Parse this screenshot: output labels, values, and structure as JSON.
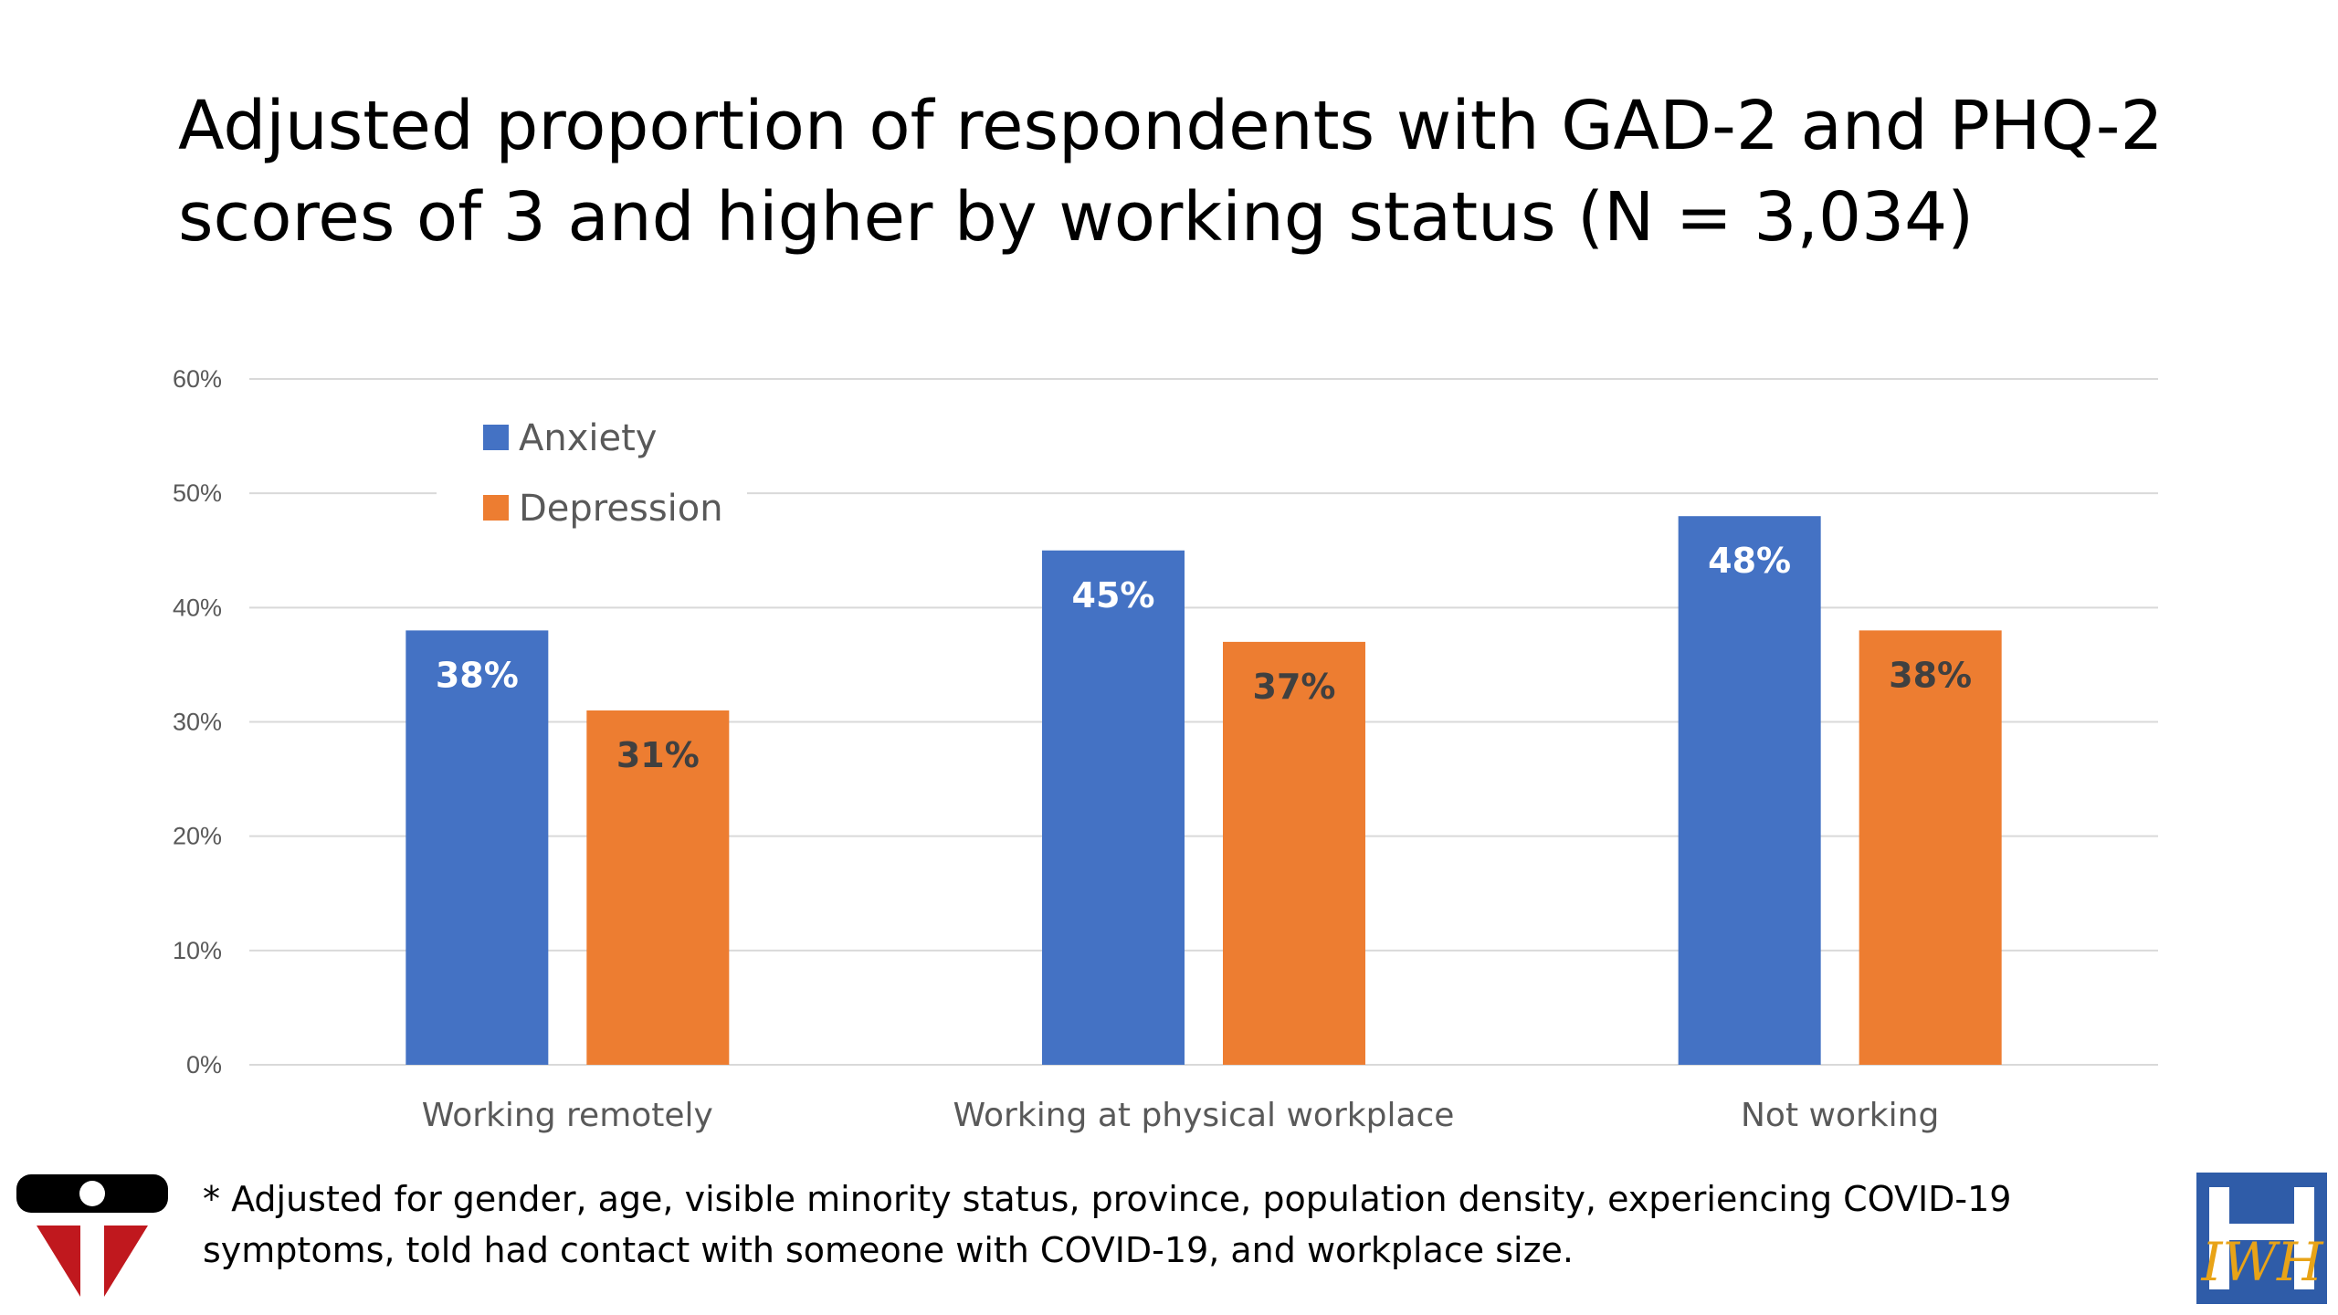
{
  "title": {
    "line1": "Adjusted proportion of respondents with GAD-2 and PHQ-2",
    "line2": "scores of 3 and higher by working status (N = 3,034)"
  },
  "footnote": {
    "line1": "* Adjusted for gender, age, visible minority status, province, population density, experiencing COVID-19",
    "line2": "symptoms, told had contact with someone with COVID-19, and workplace size."
  },
  "logos": {
    "left": "institute-emblem-logo",
    "right": "IWH",
    "right_caption": "iwh-logo"
  },
  "chart_data": {
    "type": "bar",
    "title": "",
    "xlabel": "",
    "ylabel": "",
    "categories": [
      "Working remotely",
      "Working at physical workplace",
      "Not working"
    ],
    "series": [
      {
        "name": "Anxiety",
        "values": [
          38,
          45,
          48
        ],
        "labels": [
          "38%",
          "45%",
          "48%"
        ],
        "color": "#4472C4"
      },
      {
        "name": "Depression",
        "values": [
          31,
          37,
          38
        ],
        "labels": [
          "31%",
          "37%",
          "38%"
        ],
        "color": "#ED7D31"
      }
    ],
    "ylim": [
      0,
      60
    ],
    "yticks": [
      0,
      10,
      20,
      30,
      40,
      50,
      60
    ],
    "ytick_labels": [
      "0%",
      "10%",
      "20%",
      "30%",
      "40%",
      "50%",
      "60%"
    ],
    "grid": true,
    "legend": "top-left",
    "label_color_first_series": "#FFFFFF",
    "label_color_second_series": "#404040"
  }
}
